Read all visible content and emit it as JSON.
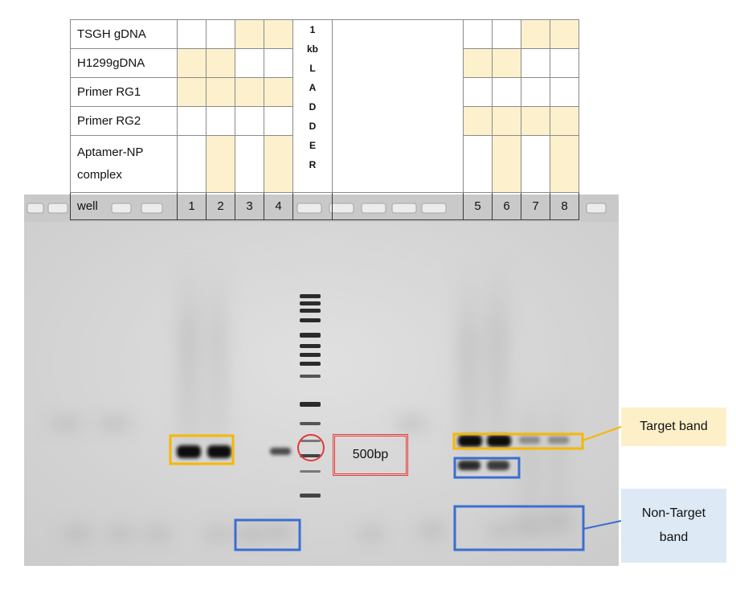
{
  "table": {
    "rows": [
      {
        "label": "TSGH gDNA",
        "left": [
          false,
          false,
          true,
          true
        ],
        "right": [
          false,
          false,
          true,
          true
        ]
      },
      {
        "label": "H1299gDNA",
        "left": [
          true,
          true,
          false,
          false
        ],
        "right": [
          true,
          true,
          false,
          false
        ]
      },
      {
        "label": "Primer RG1",
        "left": [
          true,
          true,
          true,
          true
        ],
        "right": [
          false,
          false,
          false,
          false
        ]
      },
      {
        "label": "Primer RG2",
        "left": [
          false,
          false,
          false,
          false
        ],
        "right": [
          true,
          true,
          true,
          true
        ]
      },
      {
        "label": "Aptamer-NP complex",
        "label_line1": "Aptamer-NP",
        "label_line2": "complex",
        "left": [
          false,
          true,
          false,
          true
        ],
        "right": [
          false,
          true,
          false,
          true
        ]
      }
    ],
    "ladder_letters": [
      "1",
      "kb",
      "L",
      "A",
      "D",
      "D",
      "E",
      "R"
    ],
    "well_label": "well",
    "well_numbers": [
      "1",
      "2",
      "3",
      "4",
      "5",
      "6",
      "7",
      "8"
    ]
  },
  "annotations": {
    "bp_label": "500bp",
    "target_label": "Target band",
    "nontarget_line1": "Non-Target",
    "nontarget_line2": "band"
  },
  "colors": {
    "highlight": "#fdf1cd",
    "target_box": "#f5b800",
    "nontarget_box": "#3a6fd1",
    "ladder_marker": "#e53935",
    "gel_background": "#d4d4d4"
  }
}
